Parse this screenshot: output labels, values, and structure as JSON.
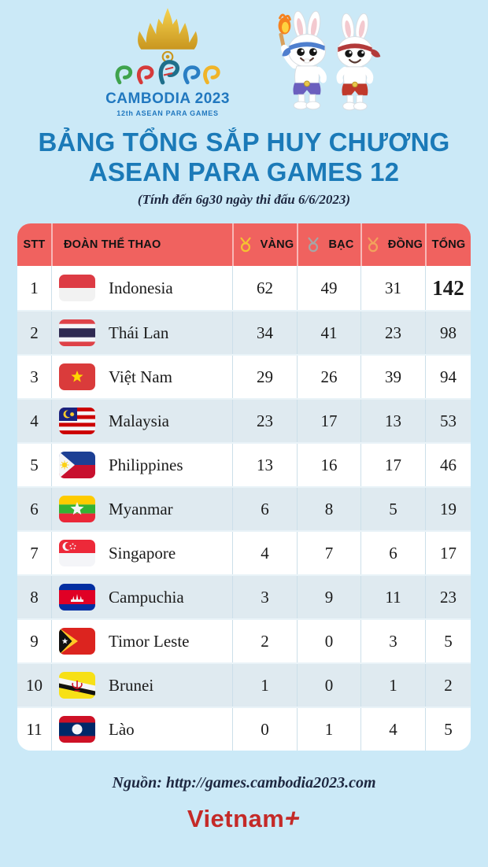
{
  "colors": {
    "page_bg": "#cbe9f7",
    "title_blue": "#1b7ab8",
    "header_red": "#f0625f",
    "row_alt": "#dfeaf0",
    "gold_medal": "#f5c231",
    "silver_medal": "#a6a6a6",
    "bronze_medal": "#f2a35c",
    "brand_red": "#c42a28",
    "dark_text": "#1d2740"
  },
  "logo": {
    "name": "CAMBODIA 2023",
    "subtitle_line": "12th ASEAN PARA GAMES"
  },
  "title": {
    "line1": "BẢNG TỔNG SẮP HUY CHƯƠNG",
    "line2": "ASEAN PARA GAMES 12",
    "note": "(Tính đến 6g30 ngày thi đấu 6/6/2023)"
  },
  "table": {
    "headers": {
      "stt": "STT",
      "team": "ĐOÀN THỂ THAO",
      "gold": "VÀNG",
      "silver": "BẠC",
      "bronze": "ĐỒNG",
      "total": "TỔNG"
    },
    "rows": [
      {
        "stt": "1",
        "team": "Indonesia",
        "flag": "indonesia",
        "gold": "62",
        "silver": "49",
        "bronze": "31",
        "total": "142",
        "total_emphasis": true
      },
      {
        "stt": "2",
        "team": "Thái Lan",
        "flag": "thailand",
        "gold": "34",
        "silver": "41",
        "bronze": "23",
        "total": "98"
      },
      {
        "stt": "3",
        "team": "Việt Nam",
        "flag": "vietnam",
        "gold": "29",
        "silver": "26",
        "bronze": "39",
        "total": "94"
      },
      {
        "stt": "4",
        "team": "Malaysia",
        "flag": "malaysia",
        "gold": "23",
        "silver": "17",
        "bronze": "13",
        "total": "53"
      },
      {
        "stt": "5",
        "team": "Philippines",
        "flag": "philippines",
        "gold": "13",
        "silver": "16",
        "bronze": "17",
        "total": "46"
      },
      {
        "stt": "6",
        "team": "Myanmar",
        "flag": "myanmar",
        "gold": "6",
        "silver": "8",
        "bronze": "5",
        "total": "19"
      },
      {
        "stt": "7",
        "team": "Singapore",
        "flag": "singapore",
        "gold": "4",
        "silver": "7",
        "bronze": "6",
        "total": "17"
      },
      {
        "stt": "8",
        "team": "Campuchia",
        "flag": "cambodia",
        "gold": "3",
        "silver": "9",
        "bronze": "11",
        "total": "23"
      },
      {
        "stt": "9",
        "team": "Timor Leste",
        "flag": "timorleste",
        "gold": "2",
        "silver": "0",
        "bronze": "3",
        "total": "5"
      },
      {
        "stt": "10",
        "team": "Brunei",
        "flag": "brunei",
        "gold": "1",
        "silver": "0",
        "bronze": "1",
        "total": "2"
      },
      {
        "stt": "11",
        "team": "Lào",
        "flag": "laos",
        "gold": "0",
        "silver": "1",
        "bronze": "4",
        "total": "5"
      }
    ]
  },
  "footer": {
    "source": "Nguồn: http://games.cambodia2023.com",
    "brand_name": "Vietnam",
    "brand_plus": "+"
  },
  "chart_data": {
    "type": "table",
    "title": "BẢNG TỔNG SẮP HUY CHƯƠNG ASEAN PARA GAMES 12",
    "subtitle": "(Tính đến 6g30 ngày thi đấu 6/6/2023)",
    "columns": [
      "STT",
      "ĐOÀN THỂ THAO",
      "VÀNG",
      "BẠC",
      "ĐỒNG",
      "TỔNG"
    ],
    "rows": [
      [
        1,
        "Indonesia",
        62,
        49,
        31,
        142
      ],
      [
        2,
        "Thái Lan",
        34,
        41,
        23,
        98
      ],
      [
        3,
        "Việt Nam",
        29,
        26,
        39,
        94
      ],
      [
        4,
        "Malaysia",
        23,
        17,
        13,
        53
      ],
      [
        5,
        "Philippines",
        13,
        16,
        17,
        46
      ],
      [
        6,
        "Myanmar",
        6,
        8,
        5,
        19
      ],
      [
        7,
        "Singapore",
        4,
        7,
        6,
        17
      ],
      [
        8,
        "Campuchia",
        3,
        9,
        11,
        23
      ],
      [
        9,
        "Timor Leste",
        2,
        0,
        3,
        5
      ],
      [
        10,
        "Brunei",
        1,
        0,
        1,
        2
      ],
      [
        11,
        "Lào",
        0,
        1,
        4,
        5
      ]
    ],
    "legend": "none",
    "source": "http://games.cambodia2023.com"
  }
}
